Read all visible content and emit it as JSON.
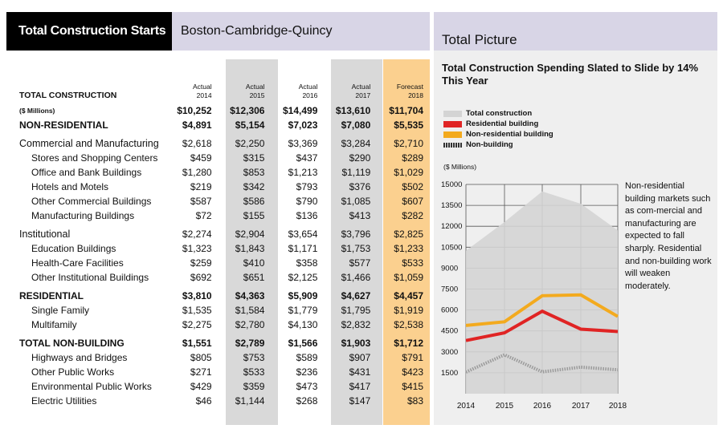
{
  "left": {
    "title": "Total Construction Starts",
    "region": "Boston-Cambridge-Quincy",
    "header_label": "TOTAL CONSTRUCTION",
    "columns": [
      {
        "l1": "Actual",
        "l2": "2014"
      },
      {
        "l1": "Actual",
        "l2": "2015"
      },
      {
        "l1": "Actual",
        "l2": "2016"
      },
      {
        "l1": "Actual",
        "l2": "2017"
      },
      {
        "l1": "Forecast",
        "l2": "2018"
      }
    ],
    "rows": [
      {
        "label": "($ Millions)",
        "values": [
          "$10,252",
          "$12,306",
          "$14,499",
          "$13,610",
          "$11,704"
        ],
        "style": "small"
      },
      {
        "label": "NON-RESIDENTIAL",
        "values": [
          "$4,891",
          "$5,154",
          "$7,023",
          "$7,080",
          "$5,535"
        ],
        "style": "bold"
      },
      {
        "label": "Commercial and Manufacturing",
        "values": [
          "$2,618",
          "$2,250",
          "$3,369",
          "$3,284",
          "$2,710"
        ],
        "style": "group"
      },
      {
        "label": "Stores and Shopping Centers",
        "values": [
          "$459",
          "$315",
          "$437",
          "$290",
          "$289"
        ],
        "style": "sub"
      },
      {
        "label": "Office and Bank Buildings",
        "values": [
          "$1,280",
          "$853",
          "$1,213",
          "$1,119",
          "$1,029"
        ],
        "style": "sub"
      },
      {
        "label": "Hotels and Motels",
        "values": [
          "$219",
          "$342",
          "$793",
          "$376",
          "$502"
        ],
        "style": "sub"
      },
      {
        "label": "Other Commercial Buildings",
        "values": [
          "$587",
          "$586",
          "$790",
          "$1,085",
          "$607"
        ],
        "style": "sub"
      },
      {
        "label": "Manufacturing Buildings",
        "values": [
          "$72",
          "$155",
          "$136",
          "$413",
          "$282"
        ],
        "style": "sub"
      },
      {
        "label": "Institutional",
        "values": [
          "$2,274",
          "$2,904",
          "$3,654",
          "$3,796",
          "$2,825"
        ],
        "style": "group"
      },
      {
        "label": "Education Buildings",
        "values": [
          "$1,323",
          "$1,843",
          "$1,171",
          "$1,753",
          "$1,233"
        ],
        "style": "sub"
      },
      {
        "label": "Health-Care Facilities",
        "values": [
          "$259",
          "$410",
          "$358",
          "$577",
          "$533"
        ],
        "style": "sub"
      },
      {
        "label": "Other Institutional Buildings",
        "values": [
          "$692",
          "$651",
          "$2,125",
          "$1,466",
          "$1,059"
        ],
        "style": "sub"
      },
      {
        "label": "RESIDENTIAL",
        "values": [
          "$3,810",
          "$4,363",
          "$5,909",
          "$4,627",
          "$4,457"
        ],
        "style": "bold"
      },
      {
        "label": "Single Family",
        "values": [
          "$1,535",
          "$1,584",
          "$1,779",
          "$1,795",
          "$1,919"
        ],
        "style": "sub"
      },
      {
        "label": "Multifamily",
        "values": [
          "$2,275",
          "$2,780",
          "$4,130",
          "$2,832",
          "$2,538"
        ],
        "style": "sub"
      },
      {
        "label": "TOTAL NON-BUILDING",
        "values": [
          "$1,551",
          "$2,789",
          "$1,566",
          "$1,903",
          "$1,712"
        ],
        "style": "bold"
      },
      {
        "label": "Highways and Bridges",
        "values": [
          "$805",
          "$753",
          "$589",
          "$907",
          "$791"
        ],
        "style": "sub"
      },
      {
        "label": "Other Public Works",
        "values": [
          "$271",
          "$533",
          "$236",
          "$431",
          "$423"
        ],
        "style": "sub"
      },
      {
        "label": "Environmental Public Works",
        "values": [
          "$429",
          "$359",
          "$473",
          "$417",
          "$415"
        ],
        "style": "sub"
      },
      {
        "label": "Electric Utilities",
        "values": [
          "$46",
          "$1,144",
          "$268",
          "$147",
          "$83"
        ],
        "style": "sub"
      }
    ]
  },
  "right": {
    "header": "Total Picture",
    "subtitle": "Total Construction Spending Slated to Slide by 14% This Year",
    "units": "($ Millions)",
    "note": "Non-residential building markets such as com-mercial and manufacturing are expected to fall sharply. Residential and non-building work will weaken moderately."
  },
  "colors": {
    "shade_gray": "#d9d9d9",
    "shade_orange": "#fbd08f",
    "header_lavender": "#d8d5e6",
    "panel_bg": "#efefef",
    "total_area": "#d4d4d4",
    "residential": "#e02424",
    "non_residential": "#f3aa1e",
    "non_building": "#9a9a9a"
  },
  "chart_data": {
    "type": "line",
    "title": "Total Construction Spending Slated to Slide by 14% This Year",
    "ylabel": "($ Millions)",
    "x": [
      2014,
      2015,
      2016,
      2017,
      2018
    ],
    "y_ticks": [
      1500,
      3000,
      4500,
      6000,
      7500,
      9000,
      10500,
      12000,
      13500,
      15000
    ],
    "ylim": [
      0,
      15000
    ],
    "grid": true,
    "legend_position": "top-left",
    "series": [
      {
        "name": "Total construction",
        "kind": "area",
        "values": [
          10252,
          12306,
          14499,
          13610,
          11704
        ]
      },
      {
        "name": "Residential building",
        "kind": "line",
        "values": [
          3810,
          4363,
          5909,
          4627,
          4457
        ]
      },
      {
        "name": "Non-residential building",
        "kind": "line",
        "values": [
          4891,
          5154,
          7023,
          7080,
          5535
        ]
      },
      {
        "name": "Non-building",
        "kind": "dotted",
        "values": [
          1551,
          2789,
          1566,
          1903,
          1712
        ]
      }
    ]
  }
}
